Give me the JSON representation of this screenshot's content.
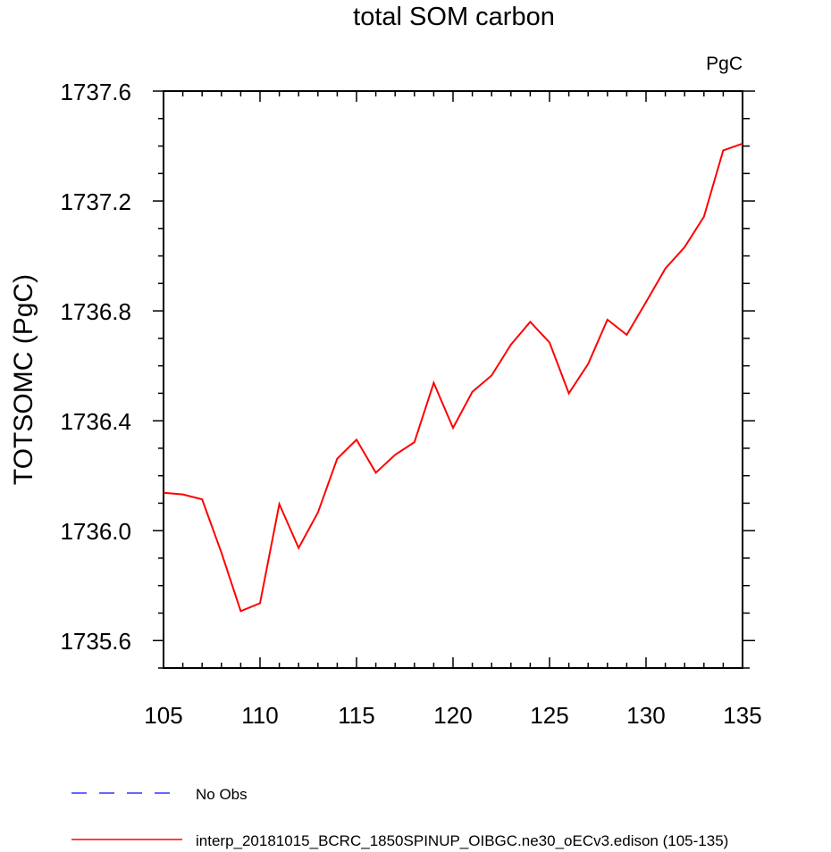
{
  "chart_data": {
    "type": "line",
    "title": "total SOM carbon",
    "units_label": "PgC",
    "xlabel": "",
    "ylabel": "TOTSOMC  (PgC)",
    "xlim": [
      105,
      135
    ],
    "ylim": [
      1735.5,
      1737.6
    ],
    "x_ticks": [
      105,
      110,
      115,
      120,
      125,
      130,
      135
    ],
    "y_ticks": [
      1735.6,
      1736.0,
      1736.4,
      1736.8,
      1737.2,
      1737.6
    ],
    "x_tick_labels": [
      "105",
      "110",
      "115",
      "120",
      "125",
      "130",
      "135"
    ],
    "y_tick_labels": [
      "1735.6",
      "1736.0",
      "1736.4",
      "1736.8",
      "1737.2",
      "1737.6"
    ],
    "grid": false,
    "legend_position": "bottom",
    "series": [
      {
        "name": "No Obs",
        "color": "#3333ff",
        "style": "dashed",
        "x": [],
        "y": []
      },
      {
        "name": "interp_20181015_BCRC_1850SPINUP_OIBGC.ne30_oECv3.edison (105-135)",
        "color": "#ff0000",
        "style": "solid",
        "x": [
          105,
          106,
          107,
          108,
          109,
          110,
          111,
          112,
          113,
          114,
          115,
          116,
          117,
          118,
          119,
          120,
          121,
          122,
          123,
          124,
          125,
          126,
          127,
          128,
          129,
          130,
          131,
          132,
          133,
          134,
          135
        ],
        "y": [
          1736.138,
          1736.132,
          1736.114,
          1735.92,
          1735.707,
          1735.736,
          1736.097,
          1735.937,
          1736.066,
          1736.262,
          1736.331,
          1736.211,
          1736.276,
          1736.322,
          1736.538,
          1736.374,
          1736.505,
          1736.565,
          1736.677,
          1736.76,
          1736.685,
          1736.5,
          1736.607,
          1736.768,
          1736.713,
          1736.832,
          1736.954,
          1737.032,
          1737.143,
          1737.384,
          1737.409
        ]
      }
    ]
  }
}
